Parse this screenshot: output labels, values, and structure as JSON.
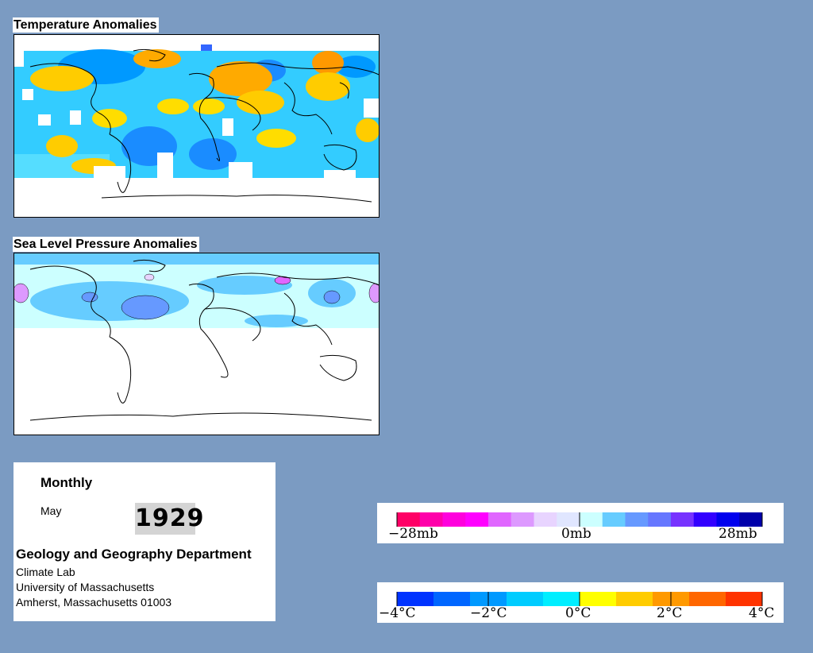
{
  "temperature_map": {
    "title": "Temperature Anomalies"
  },
  "pressure_map": {
    "title": "Sea Level Pressure Anomalies"
  },
  "info": {
    "period": "Monthly",
    "month": "May",
    "year": "1929",
    "department": "Geology and Geography Department",
    "lab": "Climate Lab",
    "university": "University of Massachusetts",
    "address": "Amherst, Massachusetts 01003"
  },
  "pressure_scale": {
    "labels": [
      "−28mb",
      "0mb",
      "28mb"
    ],
    "colors": [
      "#ff0066",
      "#ff00aa",
      "#ff00dd",
      "#ff00ff",
      "#e066ff",
      "#dd99ff",
      "#e8d4ff",
      "#e0e6ff",
      "#ccffff",
      "#66ccff",
      "#6699ff",
      "#6677ff",
      "#7733ff",
      "#3300ff",
      "#0000ee",
      "#0000aa"
    ]
  },
  "temperature_scale": {
    "labels": [
      "−4°C",
      "−2°C",
      "0°C",
      "2°C",
      "4°C"
    ],
    "colors": [
      "#0033ff",
      "#0066ff",
      "#0099ff",
      "#00ccff",
      "#00eeff",
      "#ffff00",
      "#ffcc00",
      "#ff9900",
      "#ff6600",
      "#ff3300"
    ]
  }
}
